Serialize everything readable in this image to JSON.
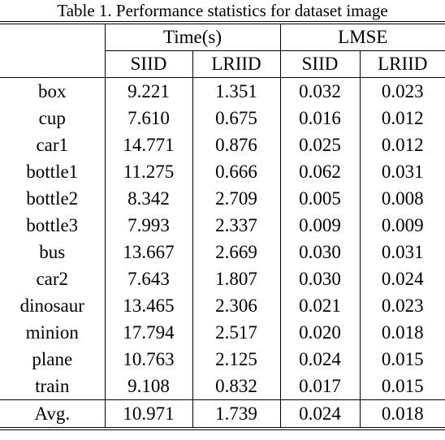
{
  "caption": "Table 1. Performance statistics for dataset image",
  "header": {
    "groups": [
      "Time(s)",
      "LMSE"
    ],
    "subcolumns": [
      "SIID",
      "LRIID",
      "SIID",
      "LRIID"
    ]
  },
  "rows": [
    {
      "name": "box",
      "values": [
        "9.221",
        "1.351",
        "0.032",
        "0.023"
      ],
      "bold": [
        false,
        false,
        false,
        true
      ]
    },
    {
      "name": "cup",
      "values": [
        "7.610",
        "0.675",
        "0.016",
        "0.012"
      ],
      "bold": [
        false,
        false,
        false,
        true
      ]
    },
    {
      "name": "car1",
      "values": [
        "14.771",
        "0.876",
        "0.025",
        "0.012"
      ],
      "bold": [
        false,
        false,
        false,
        true
      ]
    },
    {
      "name": "bottle1",
      "values": [
        "11.275",
        "0.666",
        "0.062",
        "0.031"
      ],
      "bold": [
        false,
        false,
        false,
        true
      ]
    },
    {
      "name": "bottle2",
      "values": [
        "8.342",
        "2.709",
        "0.005",
        "0.008"
      ],
      "bold": [
        false,
        false,
        true,
        false
      ]
    },
    {
      "name": "bottle3",
      "values": [
        "7.993",
        "2.337",
        "0.009",
        "0.009"
      ],
      "bold": [
        false,
        false,
        true,
        true
      ]
    },
    {
      "name": "bus",
      "values": [
        "13.667",
        "2.669",
        "0.030",
        "0.031"
      ],
      "bold": [
        false,
        false,
        true,
        false
      ]
    },
    {
      "name": "car2",
      "values": [
        "7.643",
        "1.807",
        "0.030",
        "0.024"
      ],
      "bold": [
        false,
        false,
        false,
        true
      ]
    },
    {
      "name": "dinosaur",
      "values": [
        "13.465",
        "2.306",
        "0.021",
        "0.023"
      ],
      "bold": [
        false,
        false,
        true,
        false
      ]
    },
    {
      "name": "minion",
      "values": [
        "17.794",
        "2.517",
        "0.020",
        "0.018"
      ],
      "bold": [
        false,
        false,
        false,
        true
      ]
    },
    {
      "name": "plane",
      "values": [
        "10.763",
        "2.125",
        "0.024",
        "0.015"
      ],
      "bold": [
        false,
        false,
        false,
        true
      ]
    },
    {
      "name": "train",
      "values": [
        "9.108",
        "0.832",
        "0.017",
        "0.015"
      ],
      "bold": [
        false,
        false,
        false,
        true
      ]
    }
  ],
  "footer": {
    "name": "Avg.",
    "values": [
      "10.971",
      "1.739",
      "0.024",
      "0.018"
    ],
    "bold": [
      false,
      true,
      false,
      true
    ]
  }
}
